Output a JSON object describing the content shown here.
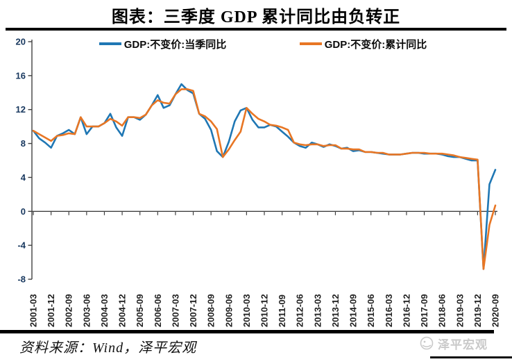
{
  "title": "图表：三季度 GDP 累计同比由负转正",
  "source_note": "资料来源：Wind，泽平宏观",
  "watermark": {
    "label": "泽平宏观"
  },
  "colors": {
    "series_quarterly": "#1F77B4",
    "series_cumulative": "#E87624",
    "axis": "#404040",
    "y_tick_label": "#17375E",
    "x_tick_label": "#1f1f1f",
    "rule": "#000000",
    "watermark_gray": "#c9c9c9"
  },
  "chart_data": {
    "type": "line",
    "title": "图表：三季度 GDP 累计同比由负转正",
    "xlabel": "",
    "ylabel": "",
    "ylim": [
      -8,
      20
    ],
    "grid": false,
    "legend_position": "top",
    "y_ticks": [
      20,
      16,
      12,
      8,
      4,
      0,
      -4,
      -8
    ],
    "tick_every": 3,
    "x_tick_labels": [
      "2001-03",
      "2001-12",
      "2002-09",
      "2003-06",
      "2004-03",
      "2004-12",
      "2005-09",
      "2006-06",
      "2007-03",
      "2007-12",
      "2008-09",
      "2009-06",
      "2010-03",
      "2010-12",
      "2011-09",
      "2012-06",
      "2013-03",
      "2013-12",
      "2014-09",
      "2015-06",
      "2016-03",
      "2016-12",
      "2017-09",
      "2018-06",
      "2019-03",
      "2019-12",
      "2020-09"
    ],
    "x": [
      "2001-03",
      "2001-06",
      "2001-09",
      "2001-12",
      "2002-03",
      "2002-06",
      "2002-09",
      "2002-12",
      "2003-03",
      "2003-06",
      "2003-09",
      "2003-12",
      "2004-03",
      "2004-06",
      "2004-09",
      "2004-12",
      "2005-03",
      "2005-06",
      "2005-09",
      "2005-12",
      "2006-03",
      "2006-06",
      "2006-09",
      "2006-12",
      "2007-03",
      "2007-06",
      "2007-09",
      "2007-12",
      "2008-03",
      "2008-06",
      "2008-09",
      "2008-12",
      "2009-03",
      "2009-06",
      "2009-09",
      "2009-12",
      "2010-03",
      "2010-06",
      "2010-09",
      "2010-12",
      "2011-03",
      "2011-06",
      "2011-09",
      "2011-12",
      "2012-03",
      "2012-06",
      "2012-09",
      "2012-12",
      "2013-03",
      "2013-06",
      "2013-09",
      "2013-12",
      "2014-03",
      "2014-06",
      "2014-09",
      "2014-12",
      "2015-03",
      "2015-06",
      "2015-09",
      "2015-12",
      "2016-03",
      "2016-06",
      "2016-09",
      "2016-12",
      "2017-03",
      "2017-06",
      "2017-09",
      "2017-12",
      "2018-03",
      "2018-06",
      "2018-09",
      "2018-12",
      "2019-03",
      "2019-06",
      "2019-09",
      "2019-12",
      "2020-03",
      "2020-06",
      "2020-09"
    ],
    "series": [
      {
        "name": "GDP:不变价:当季同比",
        "color": "#1F77B4",
        "values": [
          9.5,
          8.6,
          8.1,
          7.5,
          8.9,
          9.2,
          9.6,
          9.1,
          11.1,
          9.1,
          10.0,
          10.0,
          10.4,
          11.5,
          9.9,
          8.9,
          11.1,
          11.1,
          10.8,
          11.4,
          12.5,
          13.7,
          12.2,
          12.5,
          13.8,
          15.0,
          14.3,
          13.9,
          11.5,
          10.9,
          9.6,
          7.1,
          6.4,
          8.2,
          10.6,
          11.9,
          12.2,
          10.8,
          9.9,
          9.9,
          10.2,
          10.0,
          9.4,
          8.8,
          8.1,
          7.7,
          7.5,
          8.1,
          7.9,
          7.6,
          7.9,
          7.7,
          7.4,
          7.5,
          7.1,
          7.2,
          7.0,
          7.0,
          6.9,
          6.8,
          6.7,
          6.7,
          6.7,
          6.8,
          6.9,
          6.9,
          6.8,
          6.8,
          6.8,
          6.7,
          6.5,
          6.4,
          6.4,
          6.2,
          6.0,
          6.0,
          -6.8,
          3.2,
          4.9
        ]
      },
      {
        "name": "GDP:不变价:累计同比",
        "color": "#E87624",
        "values": [
          9.5,
          9.1,
          8.7,
          8.3,
          8.9,
          9.0,
          9.2,
          9.1,
          11.1,
          10.0,
          10.0,
          10.0,
          10.4,
          10.9,
          10.6,
          10.1,
          11.1,
          11.1,
          11.0,
          11.4,
          12.5,
          13.1,
          12.8,
          12.7,
          13.8,
          14.4,
          14.4,
          14.2,
          11.5,
          11.2,
          10.6,
          9.7,
          6.4,
          7.3,
          8.4,
          9.4,
          12.2,
          11.5,
          10.9,
          10.6,
          10.2,
          10.1,
          9.9,
          9.6,
          8.1,
          7.9,
          7.8,
          7.9,
          7.9,
          7.7,
          7.8,
          7.8,
          7.4,
          7.4,
          7.3,
          7.3,
          7.0,
          7.0,
          6.9,
          6.9,
          6.7,
          6.7,
          6.7,
          6.8,
          6.9,
          6.9,
          6.9,
          6.8,
          6.8,
          6.8,
          6.7,
          6.6,
          6.4,
          6.3,
          6.2,
          6.1,
          -6.8,
          -1.6,
          0.7
        ]
      }
    ]
  }
}
